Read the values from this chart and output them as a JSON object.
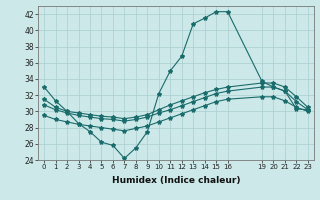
{
  "xlabel": "Humidex (Indice chaleur)",
  "bg_color": "#cce8e8",
  "grid_color": "#aacece",
  "line_color": "#1a6b6b",
  "xlim": [
    -0.5,
    23.5
  ],
  "ylim": [
    24,
    43
  ],
  "yticks": [
    24,
    26,
    28,
    30,
    32,
    34,
    36,
    38,
    40,
    42
  ],
  "xticks": [
    0,
    1,
    2,
    3,
    4,
    5,
    6,
    7,
    8,
    9,
    10,
    11,
    12,
    13,
    14,
    15,
    16,
    19,
    20,
    21,
    22,
    23
  ],
  "line1_x": [
    0,
    1,
    2,
    3,
    4,
    5,
    6,
    7,
    8,
    9,
    10,
    11,
    12,
    13,
    14,
    15,
    16,
    19,
    20,
    21,
    22,
    23
  ],
  "line1_y": [
    33.0,
    31.3,
    30.0,
    28.5,
    27.5,
    26.2,
    25.8,
    24.2,
    25.5,
    27.5,
    32.2,
    35.0,
    36.8,
    40.8,
    41.5,
    42.3,
    42.3,
    33.7,
    33.0,
    32.5,
    30.3,
    30.2
  ],
  "line2_x": [
    0,
    1,
    2,
    3,
    4,
    5,
    6,
    7,
    8,
    9,
    10,
    11,
    12,
    13,
    14,
    15,
    16,
    19,
    20,
    21,
    22,
    23
  ],
  "line2_y": [
    31.5,
    30.5,
    30.0,
    29.8,
    29.6,
    29.4,
    29.3,
    29.1,
    29.3,
    29.6,
    30.2,
    30.8,
    31.3,
    31.8,
    32.3,
    32.7,
    33.0,
    33.5,
    33.5,
    33.0,
    31.8,
    30.5
  ],
  "line3_x": [
    0,
    1,
    2,
    3,
    4,
    5,
    6,
    7,
    8,
    9,
    10,
    11,
    12,
    13,
    14,
    15,
    16,
    19,
    20,
    21,
    22,
    23
  ],
  "line3_y": [
    30.8,
    30.2,
    29.8,
    29.5,
    29.3,
    29.1,
    29.0,
    28.8,
    29.0,
    29.3,
    29.8,
    30.2,
    30.7,
    31.2,
    31.7,
    32.2,
    32.5,
    33.0,
    33.0,
    32.5,
    31.2,
    30.2
  ],
  "line4_x": [
    0,
    1,
    2,
    3,
    4,
    5,
    6,
    7,
    8,
    9,
    10,
    11,
    12,
    13,
    14,
    15,
    16,
    19,
    20,
    21,
    22,
    23
  ],
  "line4_y": [
    29.5,
    29.0,
    28.7,
    28.4,
    28.2,
    28.0,
    27.8,
    27.6,
    27.9,
    28.2,
    28.7,
    29.2,
    29.7,
    30.2,
    30.7,
    31.2,
    31.5,
    31.8,
    31.8,
    31.3,
    30.5,
    30.0
  ]
}
